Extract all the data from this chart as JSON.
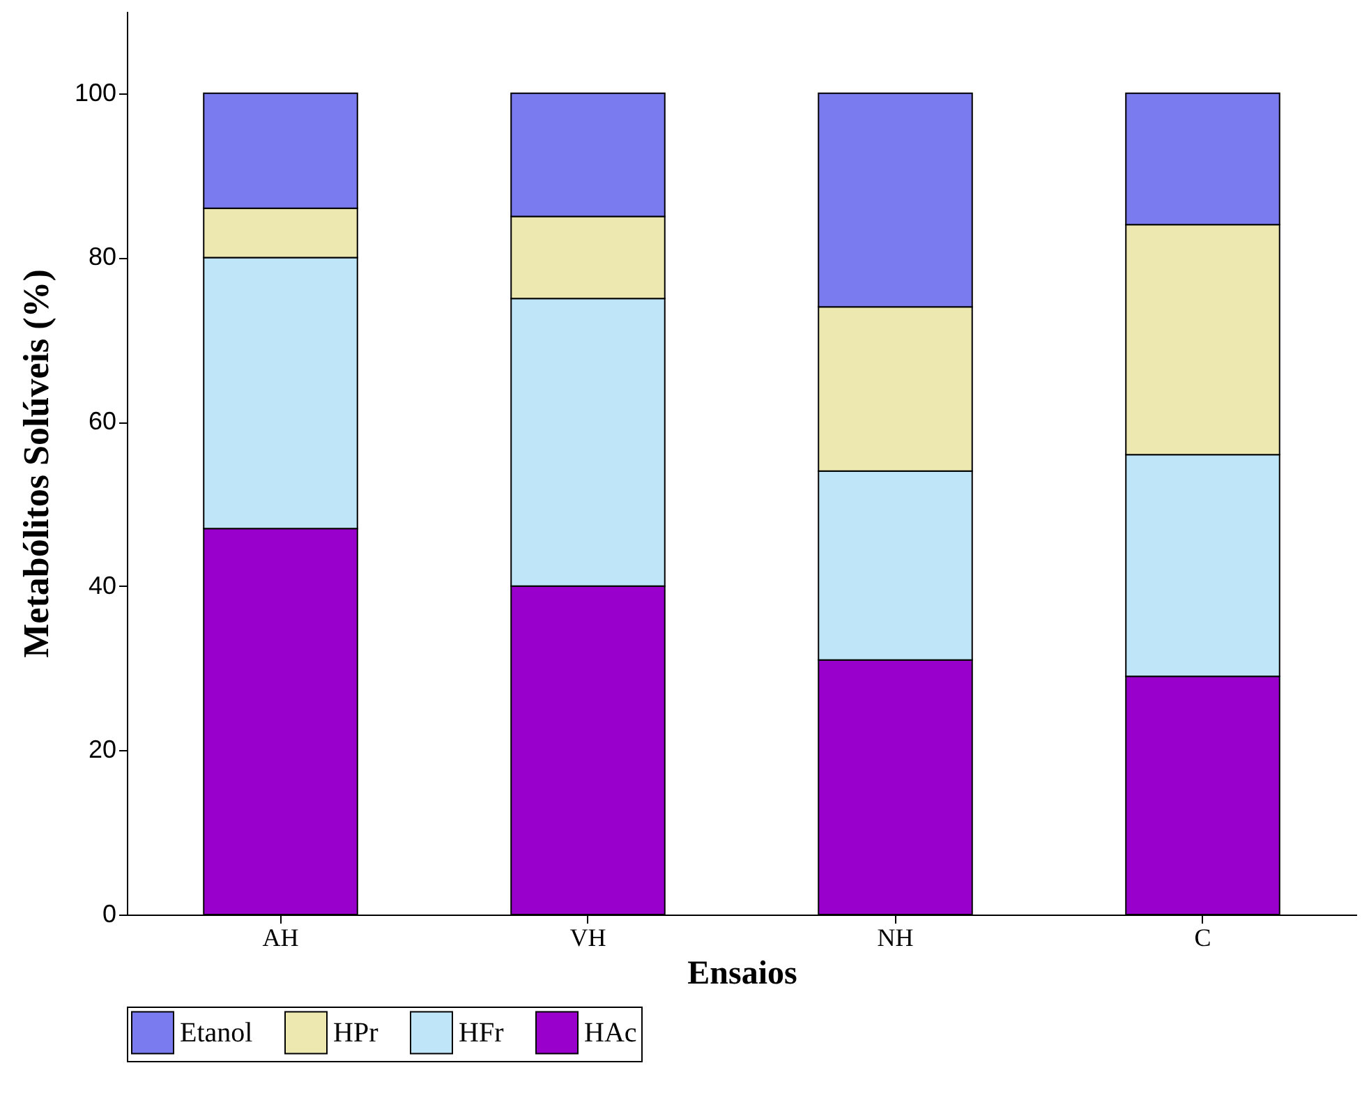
{
  "chart_data": {
    "type": "bar",
    "xlabel": "Ensaios",
    "ylabel": "Metabólitos Solúveis (%)",
    "categories": [
      "AH",
      "VH",
      "NH",
      "C"
    ],
    "stacked": true,
    "ylim": [
      0,
      110
    ],
    "yticks": [
      0,
      20,
      40,
      60,
      80,
      100
    ],
    "grid": false,
    "legend": "bottom",
    "series": [
      {
        "name": "HAc",
        "color": "#9900cc",
        "values": [
          47,
          40,
          31,
          29
        ]
      },
      {
        "name": "HFr",
        "color": "#bfe6f8",
        "values": [
          33,
          35,
          23,
          27
        ]
      },
      {
        "name": "HPr",
        "color": "#ede8b0",
        "values": [
          6,
          10,
          20,
          28
        ]
      },
      {
        "name": "Etanol",
        "color": "#7b7bf0",
        "values": [
          14,
          15,
          26,
          16
        ]
      }
    ]
  }
}
